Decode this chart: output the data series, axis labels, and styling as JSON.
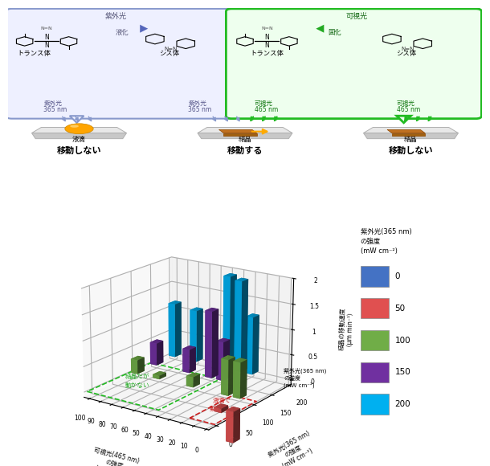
{
  "chart_ylabel": "結晶の移動速度\n（μm min⁻¹）",
  "chart_xlabel_vis": "可視光(465 nm)\nの強度\n(mW cm⁻²)",
  "chart_xlabel_uv": "紫外光(365 nm)\nの強度\n(mW cm⁻²)",
  "legend_title": "紫外光(365 nm)\nの強度\n(mW cm⁻²)",
  "legend_labels": [
    "0",
    "50",
    "100",
    "150",
    "200"
  ],
  "bar_colors": [
    "#4472c4",
    "#e05050",
    "#70ad47",
    "#7030a0",
    "#00b0f0"
  ],
  "annotation_green": "結晶だが\n動かない",
  "annotation_red": "液滴で\n動かない",
  "bar_data_list": [
    {
      "vis": 100,
      "uv": 100,
      "val": 0.28
    },
    {
      "vis": 100,
      "uv": 150,
      "val": 0.45
    },
    {
      "vis": 100,
      "uv": 200,
      "val": 1.1
    },
    {
      "vis": 80,
      "uv": 100,
      "val": 0.07
    },
    {
      "vis": 80,
      "uv": 200,
      "val": 1.05
    },
    {
      "vis": 70,
      "uv": 150,
      "val": 0.47
    },
    {
      "vis": 50,
      "uv": 100,
      "val": 0.2
    },
    {
      "vis": 50,
      "uv": 150,
      "val": 1.33
    },
    {
      "vis": 50,
      "uv": 200,
      "val": 1.87
    },
    {
      "vis": 40,
      "uv": 150,
      "val": 0.77
    },
    {
      "vis": 40,
      "uv": 200,
      "val": 1.82
    },
    {
      "vis": 30,
      "uv": 200,
      "val": 1.15
    },
    {
      "vis": 20,
      "uv": 100,
      "val": 0.7
    },
    {
      "vis": 10,
      "uv": 50,
      "val": -0.08
    },
    {
      "vis": 10,
      "uv": 100,
      "val": 0.7
    },
    {
      "vis": 0,
      "uv": 50,
      "val": -0.6
    }
  ],
  "top_illustration": {
    "blue_box_label_uv": "紫外光",
    "blue_box_label_liquefy": "液化",
    "blue_box_trans": "トランス体",
    "blue_box_cis": "シス体",
    "green_box_label_vis": "可視光",
    "green_box_label_solidify": "固化",
    "green_box_trans": "トランス体",
    "green_box_cis": "シス体",
    "scenario1_uv": "紫外光\n365 nm",
    "scenario1_obj": "液滴",
    "scenario1_result": "移動しない",
    "scenario2_uv": "紫外光\n365 nm",
    "scenario2_vis": "可視光\n465 nm",
    "scenario2_obj": "結晶",
    "scenario2_result": "移動する",
    "scenario3_vis": "可視光\n465 nm",
    "scenario3_obj": "結晶",
    "scenario3_result": "移動しない",
    "nn_label": "N=N"
  }
}
